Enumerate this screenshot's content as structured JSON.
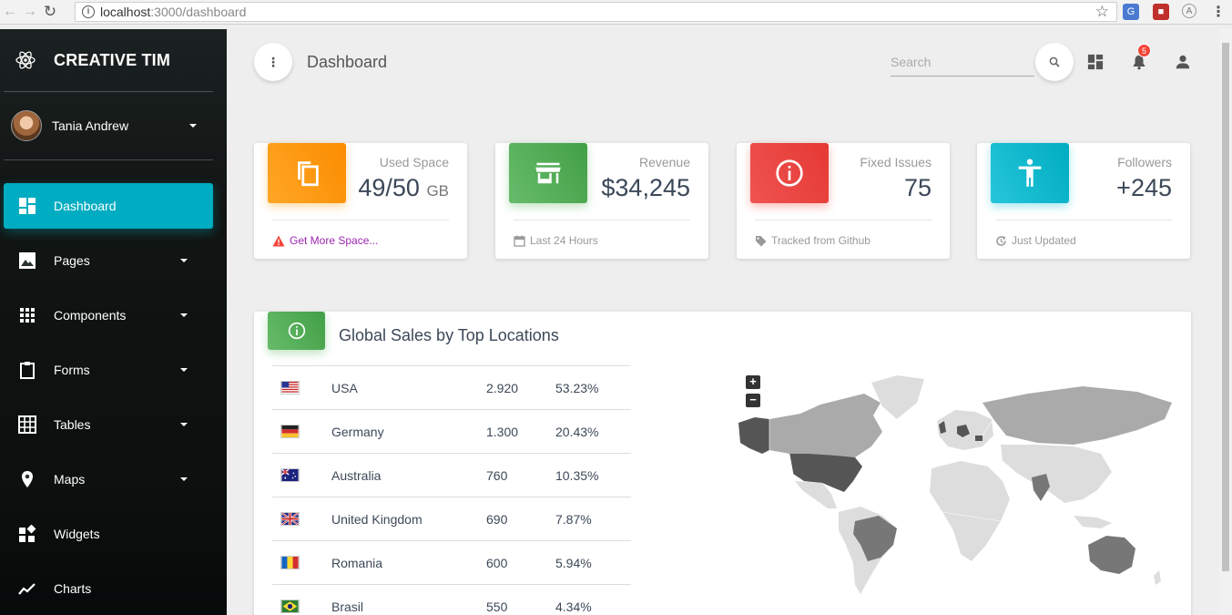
{
  "browser": {
    "url_host": "localhost",
    "url_rest": ":3000/dashboard"
  },
  "sidebar": {
    "logo_text": "CREATIVE TIM",
    "user_name": "Tania Andrew",
    "items": [
      {
        "label": "Dashboard",
        "icon": "dashboard-icon",
        "active": true
      },
      {
        "label": "Pages",
        "icon": "image-icon",
        "has_caret": true
      },
      {
        "label": "Components",
        "icon": "apps-icon",
        "has_caret": true
      },
      {
        "label": "Forms",
        "icon": "clipboard-icon",
        "has_caret": true
      },
      {
        "label": "Tables",
        "icon": "grid-icon",
        "has_caret": true
      },
      {
        "label": "Maps",
        "icon": "place-icon",
        "has_caret": true
      },
      {
        "label": "Widgets",
        "icon": "widgets-icon"
      },
      {
        "label": "Charts",
        "icon": "timeline-icon"
      }
    ],
    "accent_color": "#00acc1"
  },
  "header": {
    "title": "Dashboard",
    "search_placeholder": "Search",
    "notification_count": "5"
  },
  "stats": [
    {
      "label": "Used Space",
      "value": "49/50",
      "unit": "GB",
      "footer": "Get More Space...",
      "footer_icon": "warning-icon",
      "color": "#ff9800",
      "icon": "content-copy-icon"
    },
    {
      "label": "Revenue",
      "value": "$34,245",
      "unit": "",
      "footer": "Last 24 Hours",
      "footer_icon": "calendar-icon",
      "color": "#4caf50",
      "icon": "store-icon"
    },
    {
      "label": "Fixed Issues",
      "value": "75",
      "unit": "",
      "footer": "Tracked from Github",
      "footer_icon": "tag-icon",
      "color": "#f44336",
      "icon": "info-outline-icon"
    },
    {
      "label": "Followers",
      "value": "+245",
      "unit": "",
      "footer": "Just Updated",
      "footer_icon": "update-icon",
      "color": "#00acc1",
      "icon": "accessibility-icon"
    }
  ],
  "sales": {
    "title": "Global Sales by Top Locations",
    "rows": [
      {
        "country": "USA",
        "sales": "2.920",
        "percent": "53.23%",
        "flag": "us-flag"
      },
      {
        "country": "Germany",
        "sales": "1.300",
        "percent": "20.43%",
        "flag": "de-flag"
      },
      {
        "country": "Australia",
        "sales": "760",
        "percent": "10.35%",
        "flag": "au-flag"
      },
      {
        "country": "United Kingdom",
        "sales": "690",
        "percent": "7.87%",
        "flag": "gb-flag"
      },
      {
        "country": "Romania",
        "sales": "600",
        "percent": "5.94%",
        "flag": "ro-flag"
      },
      {
        "country": "Brasil",
        "sales": "550",
        "percent": "4.34%",
        "flag": "br-flag"
      }
    ],
    "zoom_in": "+",
    "zoom_out": "−"
  }
}
